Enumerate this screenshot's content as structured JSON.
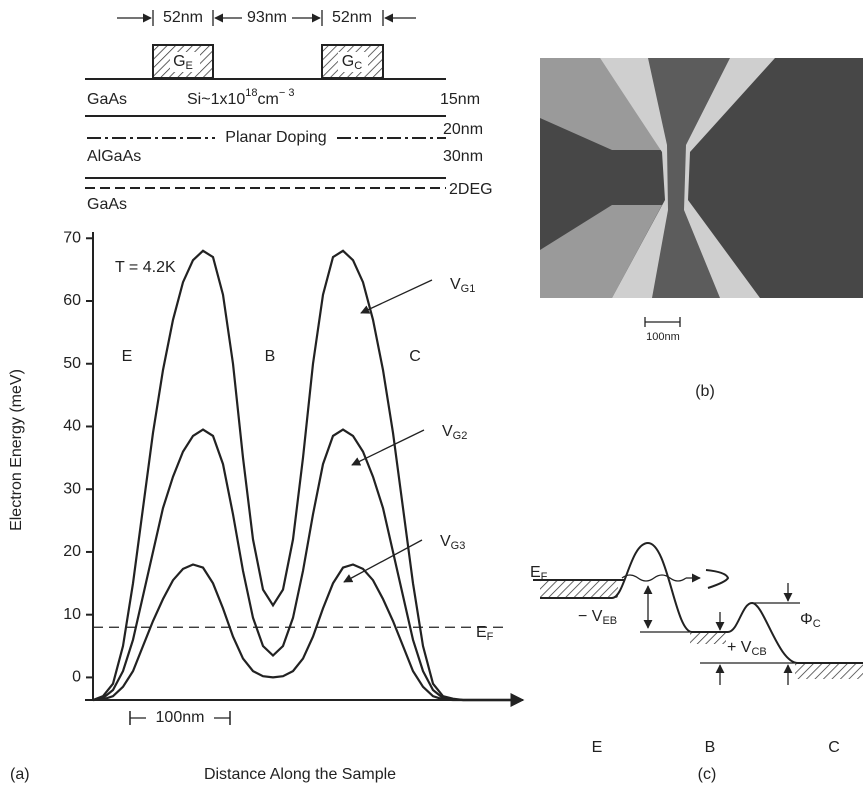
{
  "layer_diagram": {
    "widths": [
      "52nm",
      "93nm",
      "52nm"
    ],
    "gate_e": {
      "main": "G",
      "sub": "E"
    },
    "gate_c": {
      "main": "G",
      "sub": "C"
    },
    "cap": "GaAs",
    "doping": {
      "base": "Si~1x10",
      "exp": "18",
      "unit": "cm",
      "unit_exp": "− 3"
    },
    "cap_thickness": "15nm",
    "spacer_thickness": "20nm",
    "planar_doping": "Planar Doping",
    "barrier": "AlGaAs",
    "barrier_thickness": "30nm",
    "twodeg": "2DEG",
    "substrate": "GaAs"
  },
  "chart_data": {
    "type": "line",
    "panel_label": "(a)",
    "xlabel": "Distance Along the Sample",
    "ylabel": "Electron Energy (meV)",
    "temperature": "T = 4.2K",
    "regions": [
      "E",
      "B",
      "C"
    ],
    "xlim": [
      0,
      430
    ],
    "ylim": [
      -3.6,
      71
    ],
    "yticks": [
      0,
      10,
      20,
      30,
      40,
      50,
      60,
      70
    ],
    "x": [
      0,
      10,
      20,
      30,
      40,
      50,
      60,
      70,
      80,
      90,
      100,
      110,
      120,
      130,
      140,
      150,
      160,
      170,
      180,
      190,
      200,
      210,
      220,
      230,
      240,
      250,
      260,
      270,
      280,
      290,
      300,
      310,
      320,
      330,
      340,
      350,
      360,
      370,
      380,
      390,
      400,
      410,
      420
    ],
    "series": [
      {
        "name": {
          "main": "V",
          "sub": "G1"
        },
        "color": "#222222",
        "values": [
          -3.6,
          -3,
          -1,
          5,
          15,
          27,
          39,
          49,
          57,
          63,
          66.5,
          68,
          67,
          61,
          50,
          35,
          22,
          14,
          11.5,
          14,
          22,
          35,
          50,
          61,
          67,
          68,
          66.5,
          63,
          57,
          49,
          39,
          27,
          15,
          5,
          -1,
          -3,
          -3.4,
          -3.6,
          -3.6,
          -3.6,
          -3.6,
          -3.6,
          -3.6
        ]
      },
      {
        "name": {
          "main": "V",
          "sub": "G2"
        },
        "color": "#222222",
        "values": [
          -3.6,
          -3.3,
          -2,
          1,
          6,
          13,
          20,
          27,
          32,
          36,
          38.5,
          39.5,
          38.5,
          34,
          26,
          17,
          9.5,
          5,
          3.5,
          5,
          9.5,
          17,
          26,
          34,
          38.5,
          39.5,
          38.5,
          36,
          32,
          27,
          20,
          13,
          6,
          1,
          -2,
          -3.3,
          -3.5,
          -3.6,
          -3.6,
          -3.6,
          -3.6,
          -3.6,
          -3.6
        ]
      },
      {
        "name": {
          "main": "V",
          "sub": "G3"
        },
        "color": "#222222",
        "values": [
          -3.6,
          -3.5,
          -3,
          -1.5,
          1,
          5,
          9,
          12.5,
          15.5,
          17.3,
          18,
          17.5,
          15,
          11,
          6.5,
          3,
          1,
          0.2,
          0,
          0.2,
          1,
          3,
          6.5,
          11,
          15,
          17.5,
          18,
          17.3,
          15.5,
          12.5,
          9,
          5,
          1,
          -1.5,
          -3,
          -3.5,
          -3.6,
          -3.6,
          -3.6,
          -3.6,
          -3.6,
          -3.6,
          -3.6
        ]
      }
    ],
    "fermi_level": {
      "value": 8,
      "label": {
        "main": "E",
        "sub": "F"
      }
    },
    "scale_bar": {
      "length": 100,
      "label": "100nm"
    }
  },
  "micrograph": {
    "scale_bar": "100nm",
    "panel_label": "(b)"
  },
  "band_diagram": {
    "fermi": {
      "main": "E",
      "sub": "F"
    },
    "v_eb": {
      "main": "− V",
      "sub": "EB"
    },
    "phi_c": {
      "main": "Φ",
      "sub": "C"
    },
    "v_cb": {
      "main": "+ V",
      "sub": "CB"
    },
    "regions": [
      "E",
      "B",
      "C"
    ],
    "panel_label": "(c)"
  }
}
